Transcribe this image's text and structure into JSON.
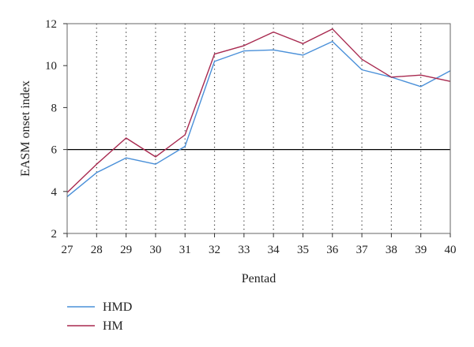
{
  "chart_data": {
    "type": "line",
    "xlabel": "Pentad",
    "ylabel": "EASM onset index",
    "x": [
      27,
      28,
      29,
      30,
      31,
      32,
      33,
      34,
      35,
      36,
      37,
      38,
      39,
      40
    ],
    "xticks": [
      "27",
      "28",
      "29",
      "30",
      "31",
      "32",
      "33",
      "34",
      "35",
      "36",
      "37",
      "38",
      "39",
      "40"
    ],
    "yticks": [
      "2",
      "4",
      "6",
      "8",
      "10",
      "12"
    ],
    "ylim": [
      2,
      12
    ],
    "xlim": [
      27,
      40
    ],
    "reference_line": 6,
    "grid": "vertical dotted",
    "legend_position": "bottom-left",
    "series": [
      {
        "name": "HMD",
        "color": "#4a90d9",
        "values": [
          3.75,
          4.9,
          5.6,
          5.3,
          6.15,
          10.2,
          10.7,
          10.75,
          10.5,
          11.15,
          9.8,
          9.45,
          9.0,
          9.75
        ]
      },
      {
        "name": "HM",
        "color": "#a8294f",
        "values": [
          3.95,
          5.3,
          6.55,
          5.65,
          6.7,
          10.55,
          10.95,
          11.6,
          11.05,
          11.75,
          10.3,
          9.45,
          9.55,
          9.25
        ]
      }
    ]
  }
}
